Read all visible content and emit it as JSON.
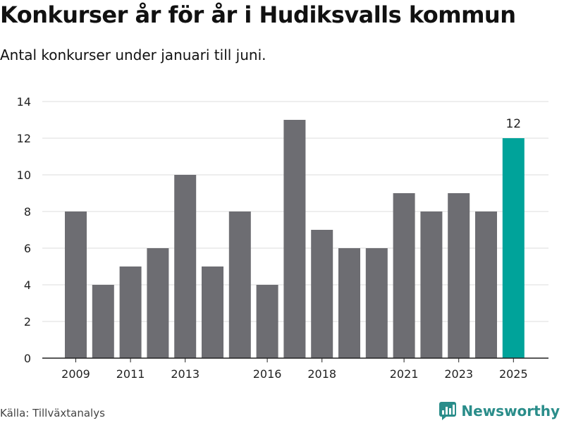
{
  "title": "Konkurser år för år i Hudiksvalls kommun",
  "subtitle": "Antal konkurser under januari till juni.",
  "source": "Källa: Tillväxtanalys",
  "brand": "Newsworthy",
  "colors": {
    "bar": "#6d6d72",
    "highlight": "#00a39a",
    "grid": "#dddddd",
    "brand": "#2a8d8a"
  },
  "icons": {
    "logo": "newsworthy-chart-logo"
  },
  "chart_data": {
    "type": "bar",
    "categories": [
      "2009",
      "2010",
      "2011",
      "2012",
      "2013",
      "2014",
      "2015",
      "2016",
      "2017",
      "2018",
      "2019",
      "2020",
      "2021",
      "2022",
      "2023",
      "2024",
      "2025"
    ],
    "values": [
      8,
      4,
      5,
      6,
      10,
      5,
      8,
      4,
      13,
      7,
      6,
      6,
      9,
      8,
      9,
      8,
      12
    ],
    "xticks": [
      "2009",
      "2011",
      "2013",
      "2016",
      "2018",
      "2021",
      "2023",
      "2025"
    ],
    "yticks": [
      0,
      2,
      4,
      6,
      8,
      10,
      12,
      14
    ],
    "ylim": [
      0,
      14
    ],
    "highlight": "2025",
    "data_labels": [
      {
        "category": "2025",
        "text": "12"
      }
    ],
    "grid": true,
    "xlabel": "",
    "ylabel": ""
  }
}
